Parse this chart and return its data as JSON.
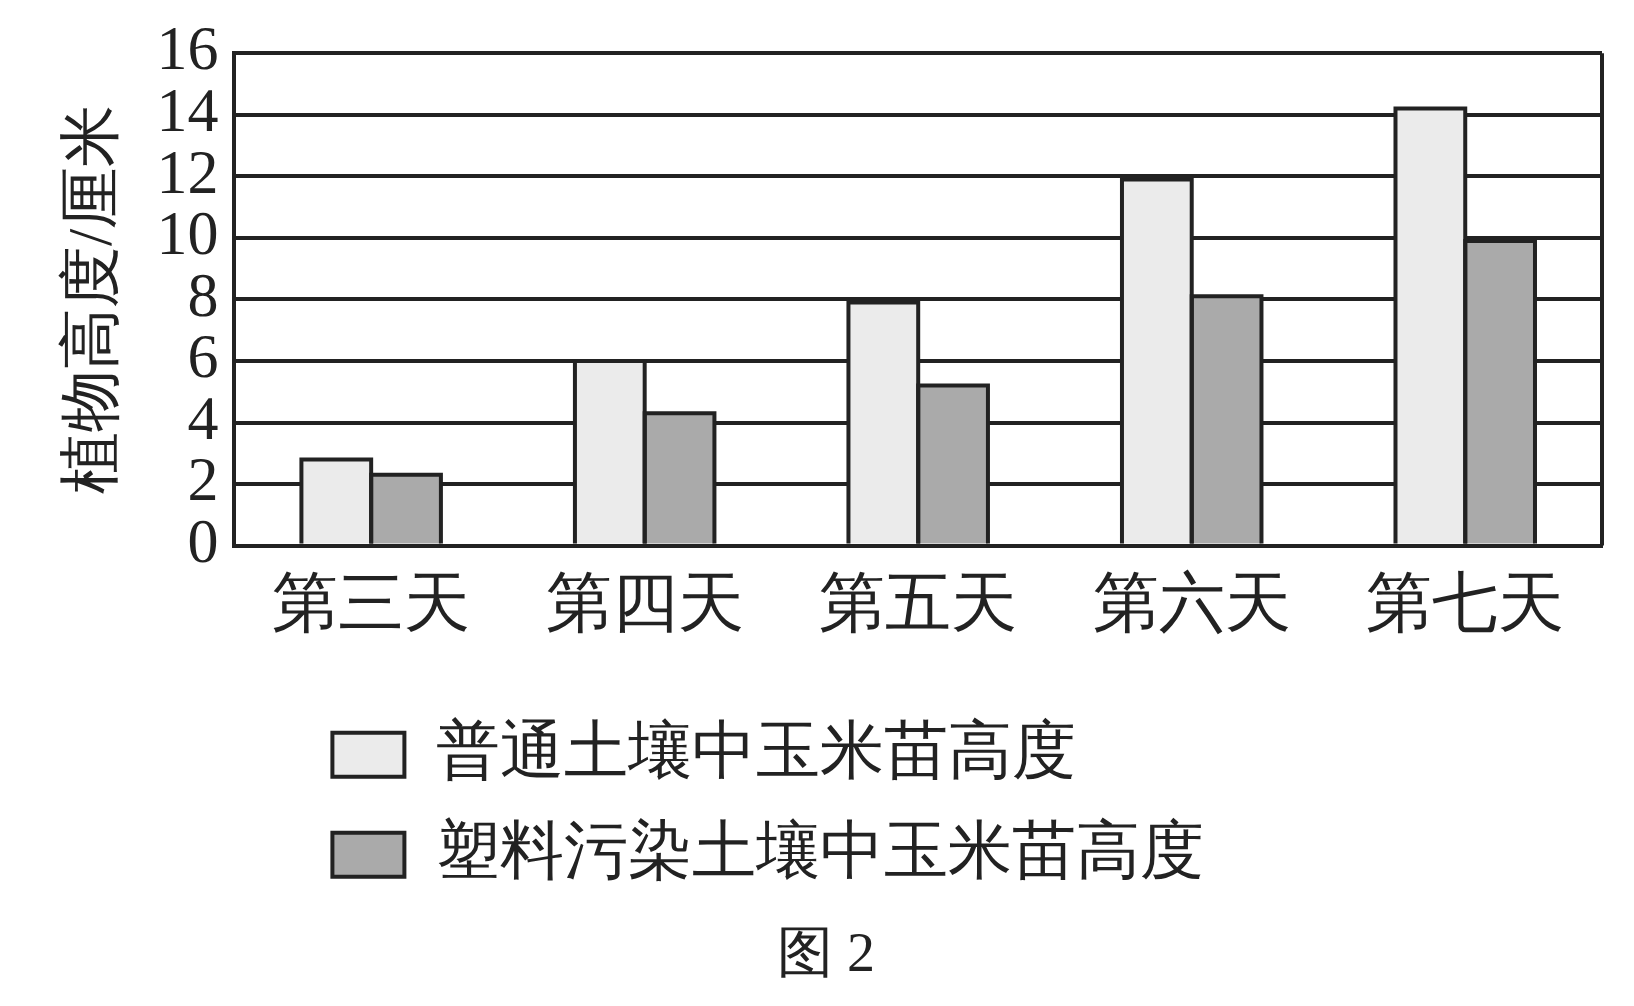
{
  "chart_data": {
    "type": "bar",
    "ylabel": "植物高度/厘米",
    "categories": [
      "第三天",
      "第四天",
      "第五天",
      "第六天",
      "第七天"
    ],
    "series": [
      {
        "name": "普通土壤中玉米苗高度",
        "color": "#ebebeb",
        "values": [
          2.8,
          6,
          7.9,
          11.9,
          14.2
        ]
      },
      {
        "name": "塑料污染土壤中玉米苗高度",
        "color": "#aaaaaa",
        "values": [
          2.3,
          4.3,
          5.2,
          8.1,
          9.9
        ]
      }
    ],
    "ylim": [
      0,
      16
    ],
    "yticks": [
      0,
      2,
      4,
      6,
      8,
      10,
      12,
      14,
      16
    ],
    "grid": "y",
    "legend": "bottom",
    "annotations": [
      "图 2"
    ]
  }
}
